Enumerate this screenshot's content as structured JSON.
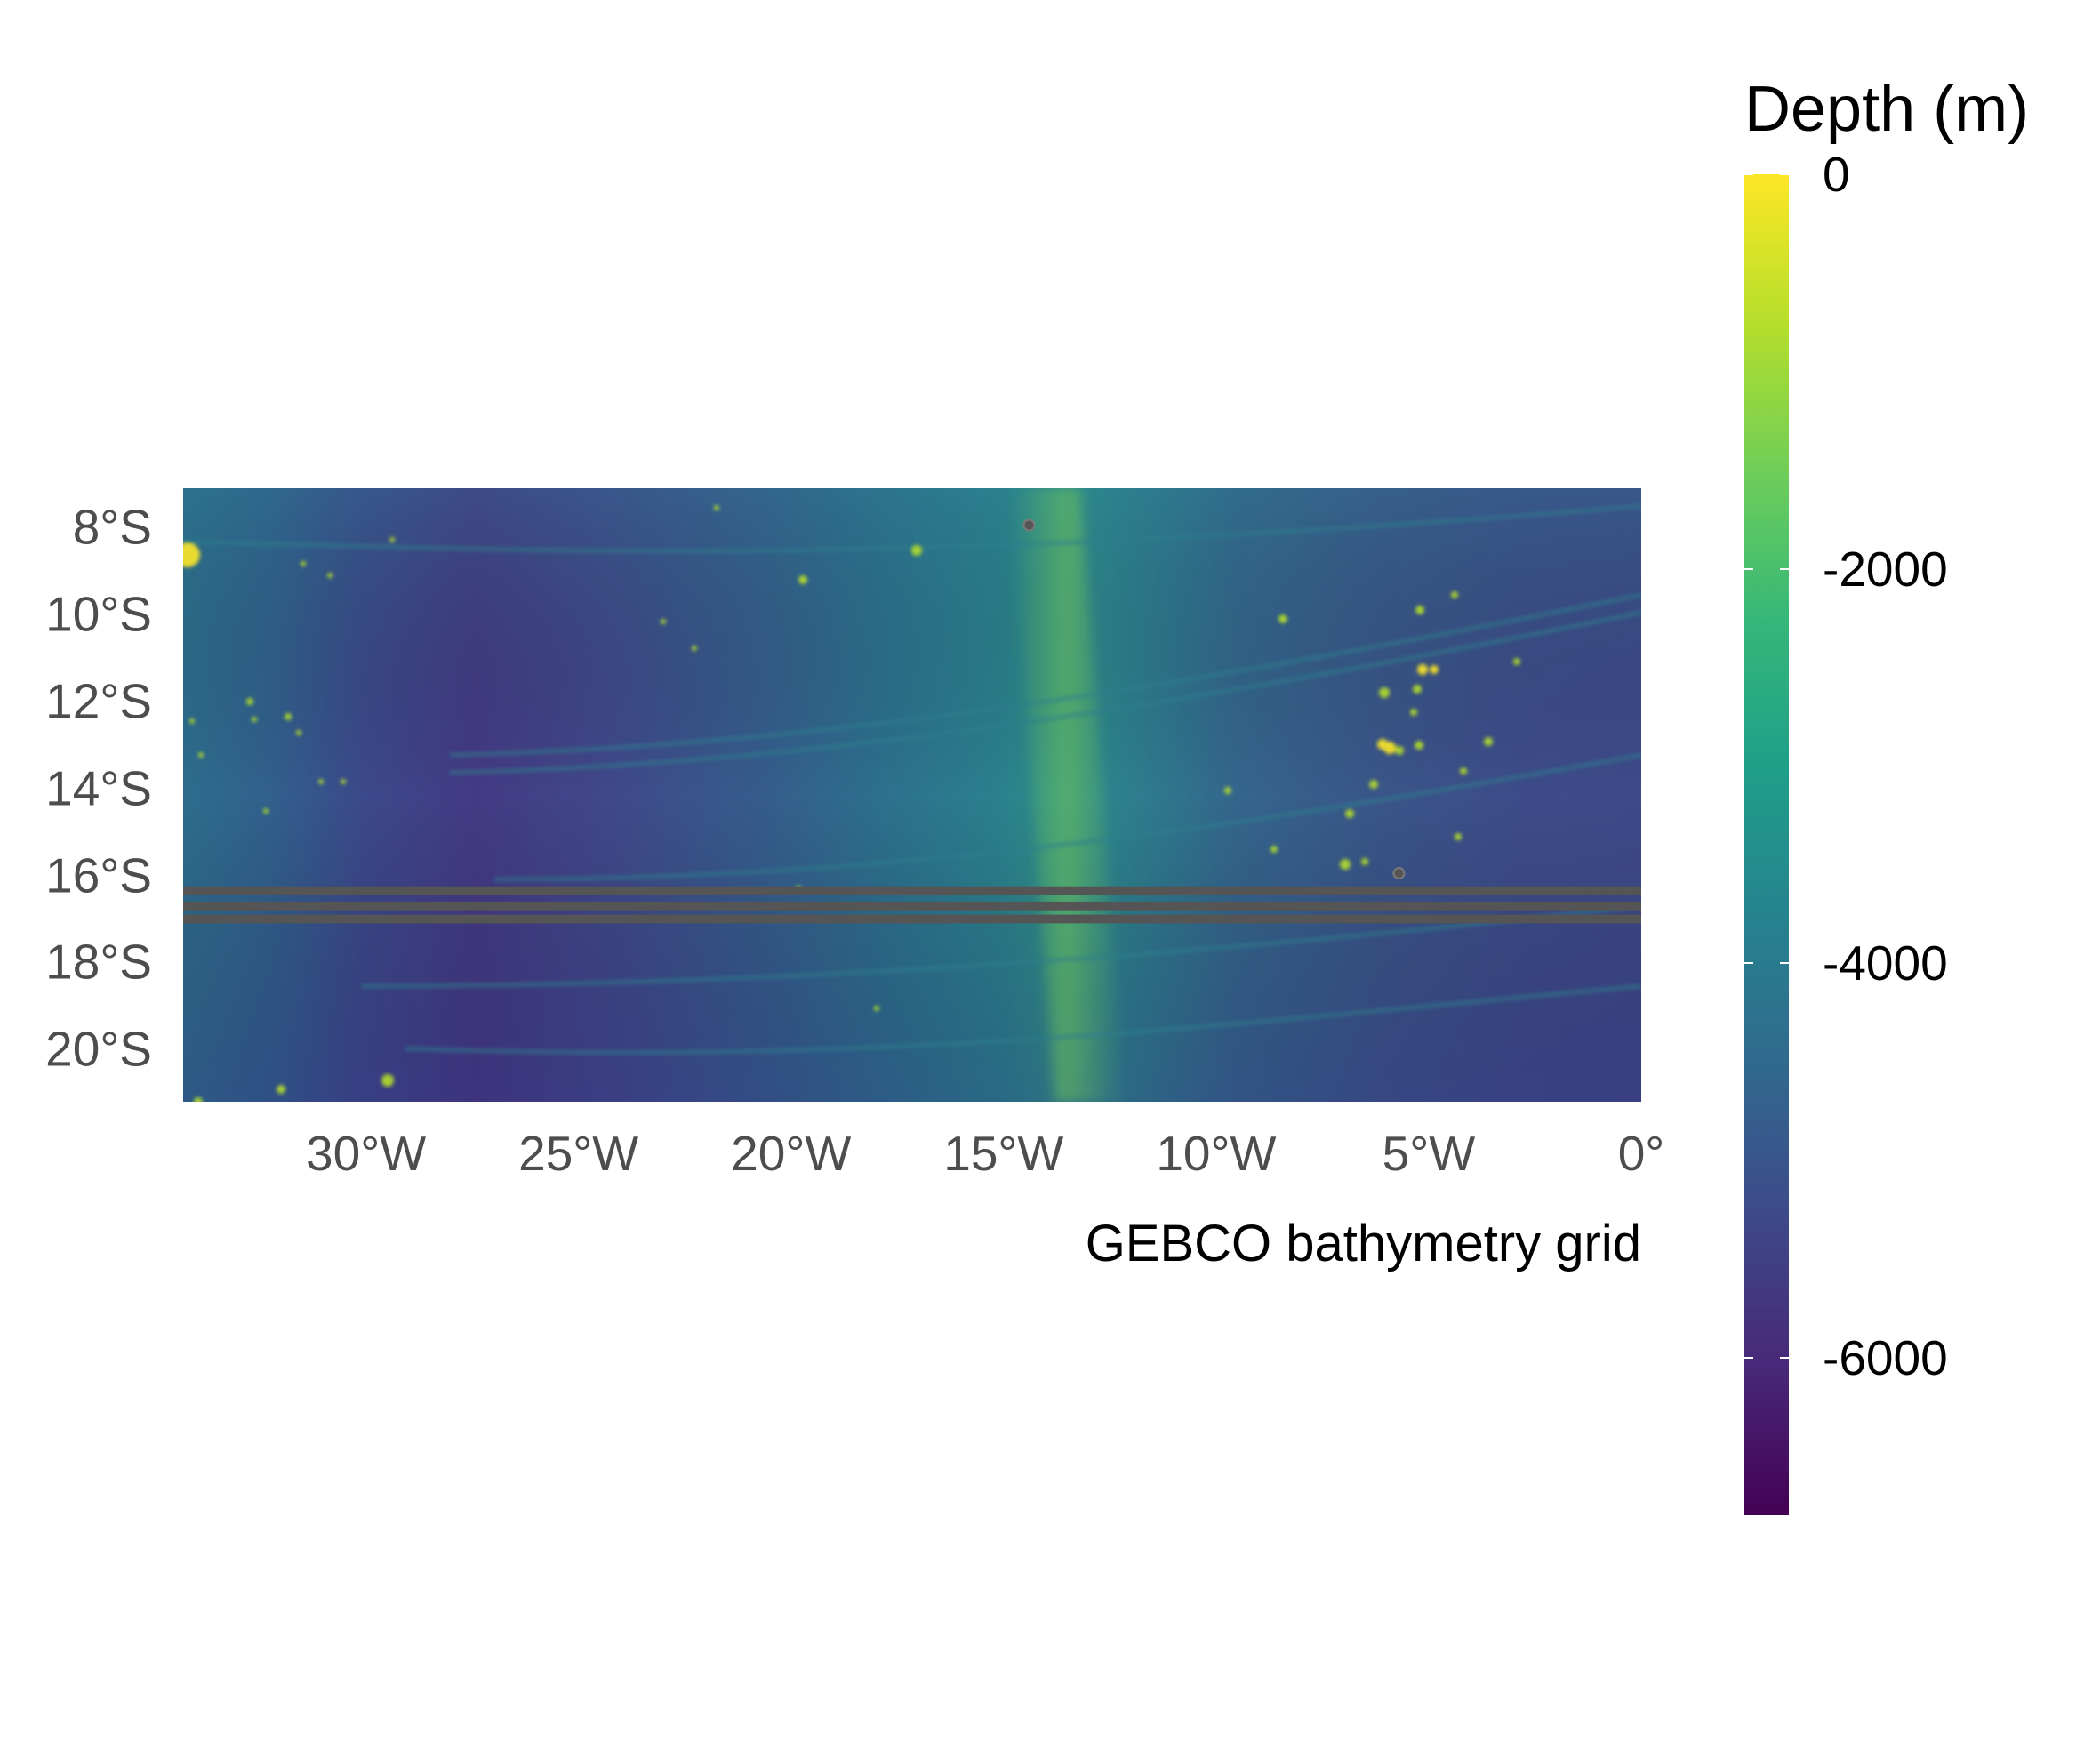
{
  "map": {
    "type": "raster",
    "caption": "GEBCO bathymetry grid",
    "extent": {
      "lon_min": -34.3,
      "lon_max": 0,
      "lat_min": -21.2,
      "lat_max": -7.1
    },
    "y_ticks": [
      {
        "value": -8,
        "label": "8°S"
      },
      {
        "value": -10,
        "label": "10°S"
      },
      {
        "value": -12,
        "label": "12°S"
      },
      {
        "value": -14,
        "label": "14°S"
      },
      {
        "value": -16,
        "label": "16°S"
      },
      {
        "value": -18,
        "label": "18°S"
      },
      {
        "value": -20,
        "label": "20°S"
      }
    ],
    "x_ticks": [
      {
        "value": -30,
        "label": "30°W"
      },
      {
        "value": -25,
        "label": "25°W"
      },
      {
        "value": -20,
        "label": "20°W"
      },
      {
        "value": -15,
        "label": "15°W"
      },
      {
        "value": -10,
        "label": "10°W"
      },
      {
        "value": -5,
        "label": "5°W"
      },
      {
        "value": 0,
        "label": "0°"
      }
    ],
    "missing_data_bands_lat": [
      [
        -16.25,
        -16.45
      ],
      [
        -16.6,
        -16.8
      ],
      [
        -16.9,
        -17.1
      ]
    ],
    "missing_color": "#555555",
    "islands": [
      {
        "lon": -14.4,
        "lat": -7.95
      },
      {
        "lon": -5.7,
        "lat": -15.95
      }
    ]
  },
  "legend": {
    "title": "Depth (m)",
    "range": [
      -6800,
      0
    ],
    "ticks": [
      {
        "value": 0,
        "label": "0"
      },
      {
        "value": -2000,
        "label": "-2000"
      },
      {
        "value": -4000,
        "label": "-4000"
      },
      {
        "value": -6000,
        "label": "-6000"
      }
    ],
    "colormap": [
      "#440154",
      "#482878",
      "#3e4989",
      "#31688e",
      "#26828e",
      "#1f9e89",
      "#35b779",
      "#6ece58",
      "#b5de2b",
      "#fde725"
    ]
  }
}
